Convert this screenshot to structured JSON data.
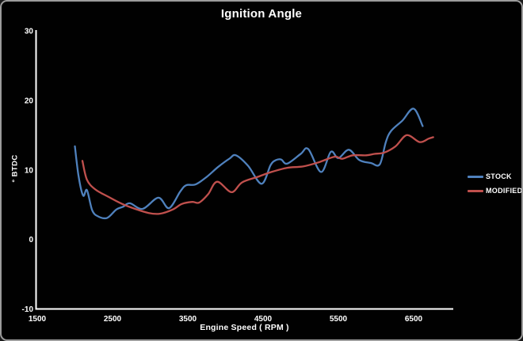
{
  "window": {
    "background": "#010101",
    "border_color": "#9c9c9c"
  },
  "chart_data": {
    "type": "line",
    "title": "Ignition Angle",
    "xlabel": "Engine Speed ( RPM )",
    "ylabel": "° BTDC",
    "xlim": [
      1500,
      7000
    ],
    "ylim": [
      -10,
      30
    ],
    "xticks": [
      1500,
      2500,
      3500,
      4500,
      5500,
      6500
    ],
    "yticks": [
      30,
      20,
      10,
      0,
      -10
    ],
    "grid": false,
    "legend_position": "right",
    "axis_color": "#ffffff",
    "text_color": "#ffffff",
    "series": [
      {
        "name": "STOCK",
        "color": "#4f81bd",
        "points": [
          [
            2000,
            13.4
          ],
          [
            2050,
            9.0
          ],
          [
            2110,
            6.3
          ],
          [
            2160,
            7.1
          ],
          [
            2230,
            4.2
          ],
          [
            2310,
            3.3
          ],
          [
            2430,
            3.1
          ],
          [
            2550,
            4.3
          ],
          [
            2640,
            4.7
          ],
          [
            2730,
            5.2
          ],
          [
            2900,
            4.4
          ],
          [
            3110,
            6.0
          ],
          [
            3250,
            4.5
          ],
          [
            3400,
            6.9
          ],
          [
            3480,
            7.8
          ],
          [
            3600,
            7.9
          ],
          [
            3740,
            8.9
          ],
          [
            3900,
            10.4
          ],
          [
            4050,
            11.6
          ],
          [
            4140,
            12.1
          ],
          [
            4300,
            10.6
          ],
          [
            4480,
            8.0
          ],
          [
            4600,
            10.7
          ],
          [
            4670,
            11.4
          ],
          [
            4740,
            11.5
          ],
          [
            4820,
            10.9
          ],
          [
            5000,
            12.3
          ],
          [
            5100,
            13.0
          ],
          [
            5270,
            9.7
          ],
          [
            5400,
            12.6
          ],
          [
            5500,
            11.7
          ],
          [
            5640,
            12.9
          ],
          [
            5780,
            11.4
          ],
          [
            5930,
            11.0
          ],
          [
            6050,
            10.8
          ],
          [
            6130,
            14.0
          ],
          [
            6200,
            15.6
          ],
          [
            6350,
            17.1
          ],
          [
            6500,
            18.8
          ],
          [
            6620,
            16.3
          ]
        ]
      },
      {
        "name": "MODIFIED",
        "color": "#c0504d",
        "points": [
          [
            2100,
            11.3
          ],
          [
            2160,
            8.6
          ],
          [
            2270,
            7.2
          ],
          [
            2450,
            6.1
          ],
          [
            2630,
            5.1
          ],
          [
            2800,
            4.4
          ],
          [
            2980,
            3.8
          ],
          [
            3130,
            3.7
          ],
          [
            3300,
            4.3
          ],
          [
            3420,
            5.1
          ],
          [
            3560,
            5.4
          ],
          [
            3650,
            5.3
          ],
          [
            3770,
            6.5
          ],
          [
            3890,
            8.3
          ],
          [
            4080,
            6.8
          ],
          [
            4220,
            8.2
          ],
          [
            4430,
            9.0
          ],
          [
            4610,
            9.7
          ],
          [
            4820,
            10.3
          ],
          [
            5030,
            10.5
          ],
          [
            5240,
            11.1
          ],
          [
            5450,
            11.9
          ],
          [
            5550,
            11.6
          ],
          [
            5690,
            12.1
          ],
          [
            5870,
            12.1
          ],
          [
            5980,
            12.3
          ],
          [
            6110,
            12.5
          ],
          [
            6260,
            13.4
          ],
          [
            6410,
            15.0
          ],
          [
            6580,
            14.0
          ],
          [
            6700,
            14.5
          ],
          [
            6760,
            14.7
          ]
        ]
      }
    ]
  }
}
